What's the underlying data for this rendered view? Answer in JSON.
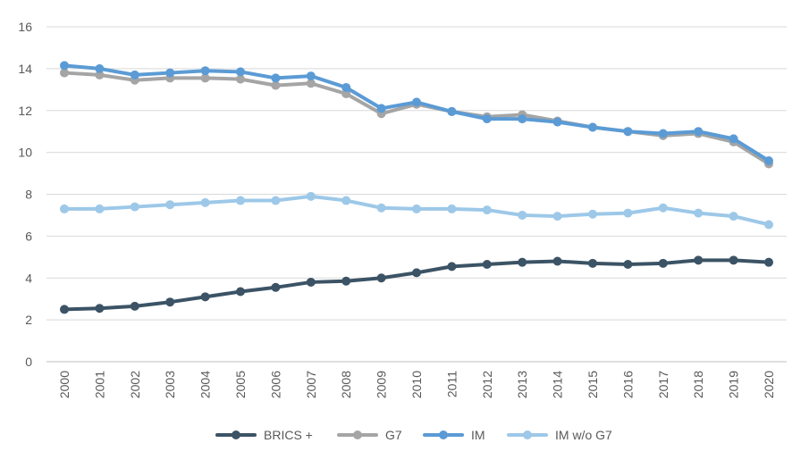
{
  "chart_data": {
    "type": "line",
    "title": "",
    "xlabel": "",
    "ylabel": "",
    "ylim": [
      0,
      16
    ],
    "yticks": [
      "0",
      "2",
      "4",
      "6",
      "8",
      "10",
      "12",
      "14",
      "16"
    ],
    "grid": true,
    "legend_position": "bottom",
    "x": [
      "2000",
      "2001",
      "2002",
      "2003",
      "2004",
      "2005",
      "2006",
      "2007",
      "2008",
      "2009",
      "2010",
      "2011",
      "2012",
      "2013",
      "2014",
      "2015",
      "2016",
      "2017",
      "2018",
      "2019",
      "2020"
    ],
    "series": [
      {
        "name": "BRICS +",
        "color": "#3b5365",
        "values": [
          2.5,
          2.55,
          2.65,
          2.85,
          3.1,
          3.35,
          3.55,
          3.8,
          3.85,
          4.0,
          4.25,
          4.55,
          4.65,
          4.75,
          4.8,
          4.7,
          4.65,
          4.7,
          4.85,
          4.85,
          4.75
        ]
      },
      {
        "name": "G7",
        "color": "#a5a5a5",
        "values": [
          13.8,
          13.7,
          13.45,
          13.55,
          13.55,
          13.5,
          13.2,
          13.3,
          12.8,
          11.85,
          12.3,
          11.95,
          11.7,
          11.8,
          11.5,
          11.2,
          11.0,
          10.8,
          10.9,
          10.5,
          9.45
        ]
      },
      {
        "name": "IM",
        "color": "#5b9bd5",
        "values": [
          14.15,
          14.0,
          13.7,
          13.8,
          13.9,
          13.85,
          13.55,
          13.65,
          13.1,
          12.1,
          12.4,
          11.95,
          11.6,
          11.6,
          11.45,
          11.2,
          11.0,
          10.9,
          11.0,
          10.65,
          9.6
        ]
      },
      {
        "name": "IM w/o G7",
        "color": "#9dc8e8",
        "values": [
          7.3,
          7.3,
          7.4,
          7.5,
          7.6,
          7.7,
          7.7,
          7.9,
          7.7,
          7.35,
          7.3,
          7.3,
          7.25,
          7.0,
          6.95,
          7.05,
          7.1,
          7.35,
          7.1,
          6.95,
          6.55
        ]
      }
    ]
  }
}
